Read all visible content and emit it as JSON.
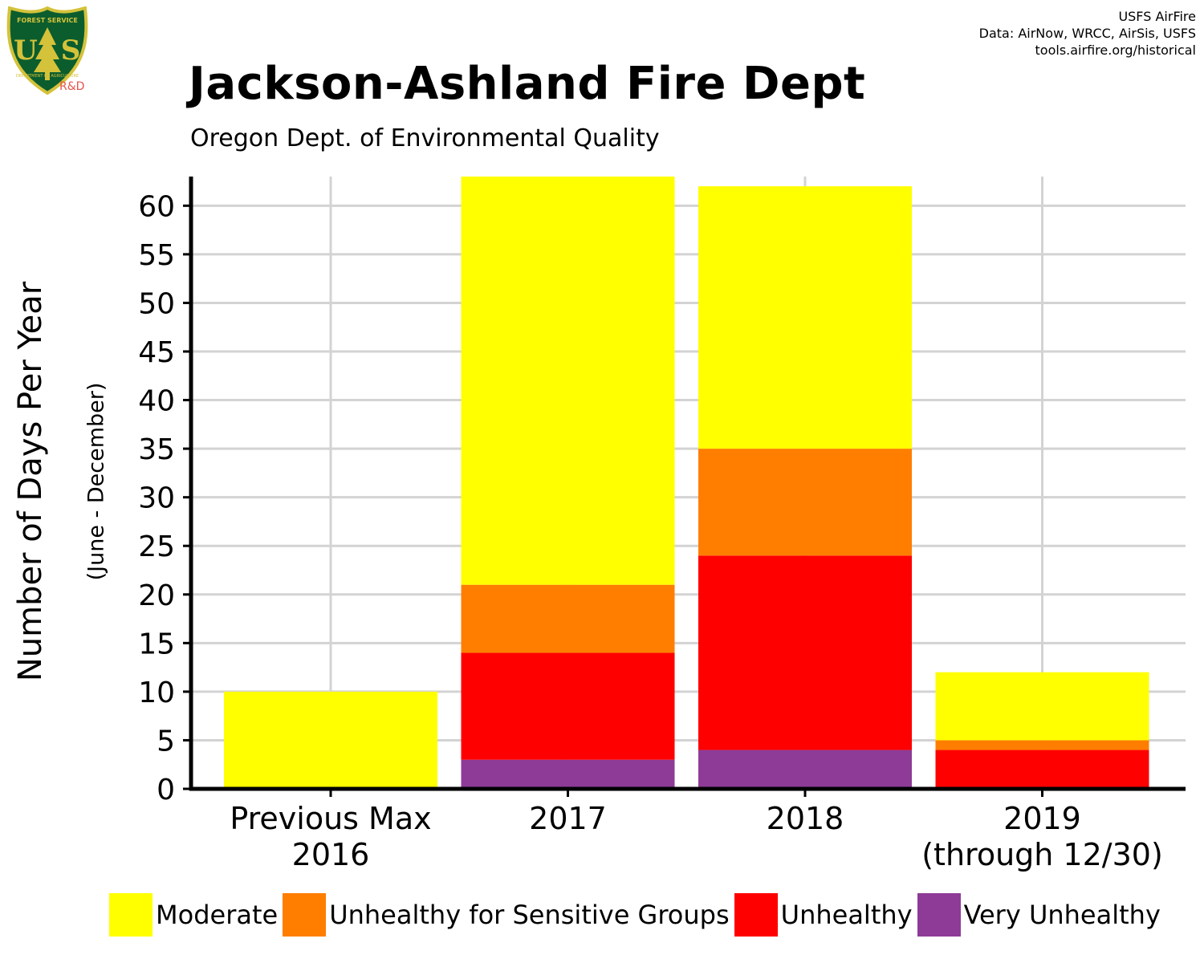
{
  "logo": {
    "icon": "usfs-shield-icon",
    "top_text": "FOREST SERVICE",
    "letters": "US",
    "bottom_text": "DEPARTMENT OF AGRICULTURE",
    "tag": "R&D",
    "colors": {
      "shield": "#0b5d2e",
      "border": "#d4c23a",
      "tag": "#e8534a"
    }
  },
  "credits": {
    "line1": "USFS AirFire",
    "line2": "Data: AirNow, WRCC, AirSis, USFS",
    "line3": "tools.airfire.org/historical"
  },
  "chart_data": {
    "type": "bar",
    "stacked": true,
    "title": "Jackson-Ashland Fire Dept",
    "subtitle": "Oregon Dept. of Environmental Quality",
    "ylabel": "Number of Days Per Year",
    "ylabel_sub": "(June - December)",
    "categories": [
      [
        "Previous Max",
        "2016"
      ],
      [
        "2017"
      ],
      [
        "2018"
      ],
      [
        "2019",
        "(through 12/30)"
      ]
    ],
    "yticks": [
      0,
      5,
      10,
      15,
      20,
      25,
      30,
      35,
      40,
      45,
      50,
      55,
      60
    ],
    "ylim": [
      0,
      63
    ],
    "grid": true,
    "legend_position": "bottom",
    "series": [
      {
        "name": "Very Unhealthy",
        "color": "#8E3B97",
        "values": [
          0,
          3,
          4,
          0
        ]
      },
      {
        "name": "Unhealthy",
        "color": "#FF0000",
        "values": [
          0,
          11,
          20,
          4
        ]
      },
      {
        "name": "Unhealthy for Sensitive Groups",
        "color": "#FF7E00",
        "values": [
          0,
          7,
          11,
          1
        ]
      },
      {
        "name": "Moderate",
        "color": "#FFFF00",
        "values": [
          10,
          42,
          27,
          7
        ]
      }
    ],
    "legend_order": [
      "Moderate",
      "Unhealthy for Sensitive Groups",
      "Unhealthy",
      "Very Unhealthy"
    ]
  }
}
